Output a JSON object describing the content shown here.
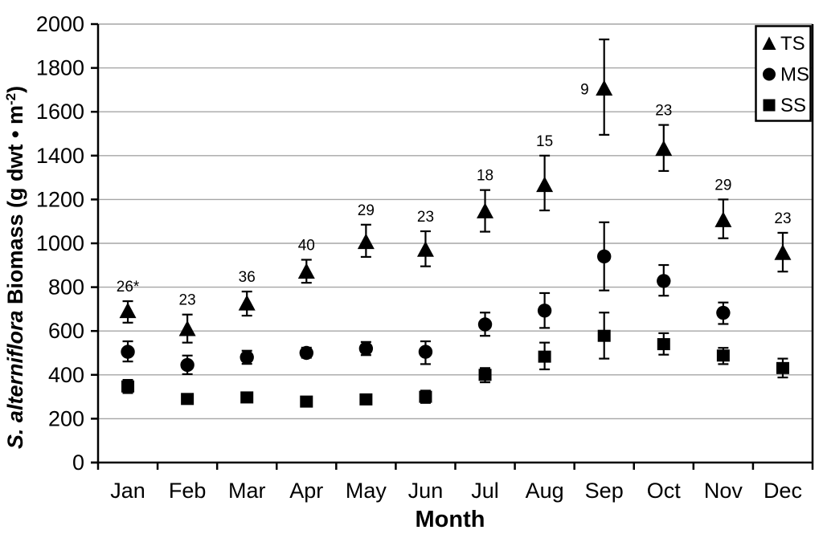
{
  "chart_data": {
    "type": "scatter",
    "title": "",
    "xlabel": "Month",
    "ylabel": "S. alterniflora Biomass (g dwt • m⁻²)",
    "ylabel_parts": {
      "species": "S. alterniflora",
      "mid": " Biomass (g dwt • m",
      "sup": "-2",
      "end": ")"
    },
    "categories": [
      "Jan",
      "Feb",
      "Mar",
      "Apr",
      "May",
      "Jun",
      "Jul",
      "Aug",
      "Sep",
      "Oct",
      "Nov",
      "Dec"
    ],
    "ylim": [
      0,
      2000
    ],
    "yticks": [
      0,
      200,
      400,
      600,
      800,
      1000,
      1200,
      1400,
      1600,
      1800,
      2000
    ],
    "grid": true,
    "legend_position": "top-right",
    "legend": [
      {
        "label": "TS",
        "marker": "triangle"
      },
      {
        "label": "MS",
        "marker": "circle"
      },
      {
        "label": "SS",
        "marker": "square"
      }
    ],
    "series": [
      {
        "name": "TS",
        "marker": "triangle",
        "values": [
          690,
          608,
          725,
          870,
          1005,
          970,
          1145,
          1265,
          1705,
          1430,
          1105,
          955
        ],
        "err_lo": [
          52,
          61,
          55,
          50,
          67,
          75,
          92,
          115,
          210,
          100,
          82,
          84
        ],
        "err_hi": [
          46,
          67,
          55,
          55,
          80,
          85,
          98,
          135,
          225,
          110,
          95,
          93
        ],
        "n_labels": [
          "26*",
          "23",
          "36",
          "40",
          "29",
          "23",
          "18",
          "15",
          "9",
          "23",
          "29",
          "23"
        ],
        "n_label_sides": [
          "above",
          "above",
          "above",
          "above",
          "above",
          "above",
          "above",
          "above",
          "left",
          "above",
          "above",
          "above"
        ]
      },
      {
        "name": "MS",
        "marker": "circle",
        "values": [
          505,
          445,
          480,
          500,
          520,
          505,
          630,
          693,
          940,
          828,
          683,
          null
        ],
        "err_lo": [
          44,
          42,
          30,
          22,
          30,
          56,
          52,
          79,
          155,
          67,
          51,
          null
        ],
        "err_hi": [
          48,
          43,
          30,
          24,
          30,
          48,
          54,
          80,
          156,
          73,
          47,
          null
        ]
      },
      {
        "name": "SS",
        "marker": "square",
        "values": [
          347,
          290,
          297,
          278,
          288,
          300,
          400,
          483,
          578,
          540,
          488,
          431
        ],
        "err_lo": [
          30,
          12,
          12,
          8,
          13,
          28,
          34,
          58,
          104,
          48,
          39,
          43
        ],
        "err_hi": [
          30,
          12,
          12,
          10,
          12,
          28,
          31,
          64,
          106,
          50,
          35,
          43
        ]
      }
    ],
    "colors": {
      "marker": "#000000",
      "grid": "#a6a6a6",
      "axis": "#000000",
      "background": "#ffffff"
    }
  }
}
